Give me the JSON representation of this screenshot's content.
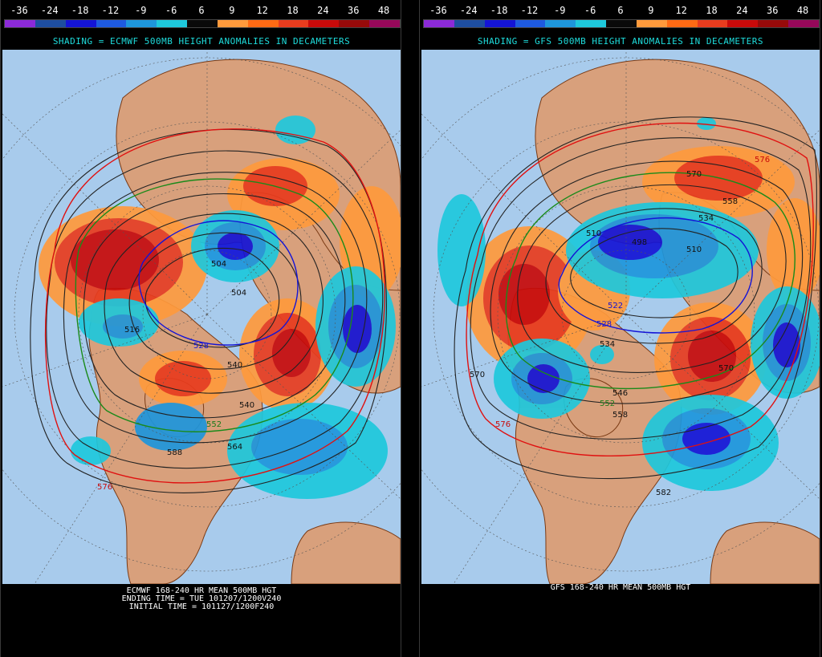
{
  "scale_labels": [
    "-36",
    "-24",
    "-18",
    "-12",
    "-9",
    "-6",
    "6",
    "9",
    "12",
    "18",
    "24",
    "36",
    "48"
  ],
  "scale_colors": [
    "#8c2ad8",
    "#1e4ea0",
    "#1414d6",
    "#1e5ae0",
    "#1e96dc",
    "#1ec8dc",
    "#0a0a0a",
    "#ff9a3c",
    "#ff6a14",
    "#e83c1e",
    "#c80a0a",
    "#960a0a",
    "#96085a"
  ],
  "colors": {
    "ocean": "#a8cbec",
    "land": "#d8a07c",
    "coast": "#7a3a14",
    "contour": "#222222",
    "accent_text": "#1edcdc"
  },
  "left_panel": {
    "subtitle": "SHADING = ECMWF 500MB HEIGHT ANOMALIES IN DECAMETERS",
    "caption_lines": [
      "ECMWF 168-240 HR MEAN 500MB HGT",
      "ENDING TIME = TUE 101207/1200V240",
      "INITIAL TIME = 101127/1200F240"
    ],
    "contour_labels": [
      "504",
      "504",
      "516",
      "528",
      "540",
      "540",
      "552",
      "564",
      "576",
      "588"
    ]
  },
  "right_panel": {
    "subtitle": "SHADING = GFS 500MB HEIGHT ANOMALIES IN DECAMETERS",
    "caption_lines": [
      "GFS 168-240 HR MEAN 500MB HGT"
    ],
    "contour_labels": [
      "498",
      "510",
      "510",
      "522",
      "528",
      "534",
      "534",
      "546",
      "552",
      "558",
      "558",
      "570",
      "570",
      "570",
      "576",
      "576",
      "582"
    ]
  }
}
